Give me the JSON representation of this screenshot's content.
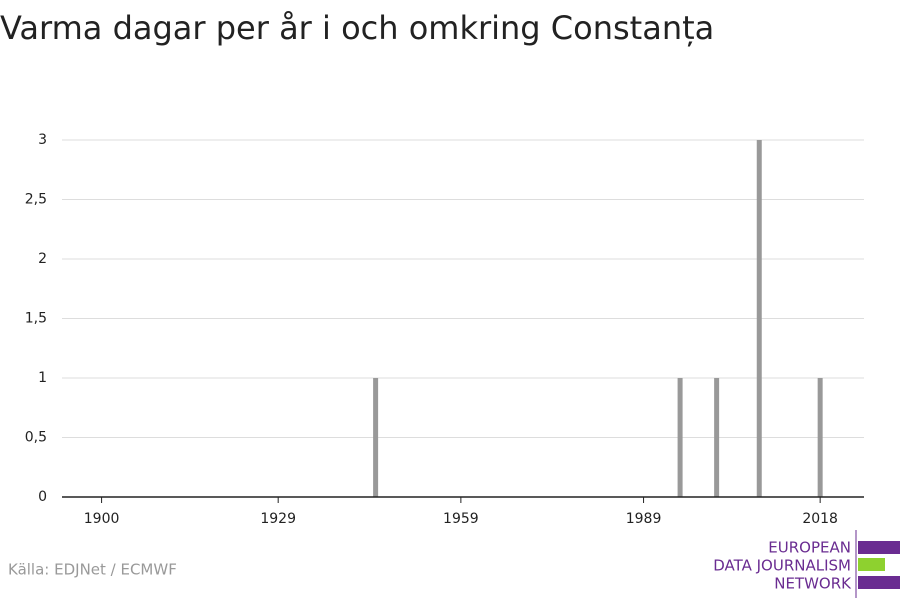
{
  "chart_data": {
    "type": "bar",
    "title": "Varma dagar per år i och omkring Constanța",
    "x": [
      1945,
      1995,
      2001,
      2008,
      2018
    ],
    "values": [
      1,
      1,
      1,
      3,
      1
    ],
    "color": "#999999",
    "xlim": [
      1893.5,
      2025.2
    ],
    "xticks": [
      1900,
      1929,
      1959,
      1989,
      2018
    ],
    "ylim": [
      0,
      3
    ],
    "yticks": [
      0,
      {
        "value": 0.5,
        "label": "0,5"
      },
      1,
      {
        "value": 1.5,
        "label": "1,5"
      },
      2,
      {
        "value": 2.5,
        "label": "2,5"
      },
      3
    ],
    "grid": true,
    "source": "Källa: EDJNet / ECMWF",
    "logo": [
      "EUROPEAN",
      "DATA JOURNALISM",
      "NETWORK"
    ]
  }
}
